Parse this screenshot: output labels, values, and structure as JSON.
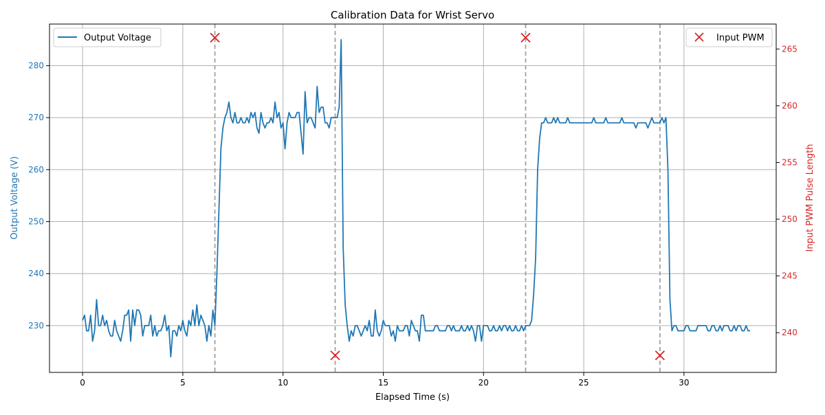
{
  "chart_data": {
    "type": "line",
    "title": "Calibration Data for Wrist Servo",
    "xlabel": "Elapsed Time (s)",
    "ylabel_left": "Output Voltage (V)",
    "ylabel_right": "Input PWM Pulse Length",
    "xlim": [
      -1.65,
      34.6
    ],
    "ylim_left": [
      221,
      288
    ],
    "ylim_right": [
      236.5,
      267.2
    ],
    "x_ticks": [
      0,
      5,
      10,
      15,
      20,
      25,
      30
    ],
    "y_ticks_left": [
      230,
      240,
      250,
      260,
      270,
      280
    ],
    "y_ticks_right": [
      240,
      245,
      250,
      255,
      260,
      265
    ],
    "grid": true,
    "colors": {
      "voltage": "#1f77b4",
      "pwm": "#d62728",
      "marker_lines": "#a0a0a0",
      "grid": "#b0b0b0"
    },
    "legend_left": {
      "label": "Output Voltage",
      "placement": "upper-left"
    },
    "legend_right": {
      "label": "Input PWM",
      "placement": "upper-right"
    },
    "series": [
      {
        "name": "Output Voltage",
        "axis": "left",
        "x_start": 0,
        "x_step": 0.1,
        "values": [
          231,
          232,
          229,
          229,
          232,
          227,
          229,
          235,
          230,
          230,
          232,
          230,
          231,
          229,
          228,
          228,
          231,
          229,
          228,
          227,
          229,
          232,
          232,
          233,
          227,
          233,
          230,
          233,
          233,
          232,
          228,
          230,
          230,
          230,
          232,
          228,
          230,
          228,
          229,
          229,
          230,
          232,
          229,
          230,
          224,
          229,
          229,
          228,
          230,
          229,
          231,
          229,
          228,
          231,
          230,
          233,
          230,
          234,
          230,
          232,
          231,
          230,
          227,
          230,
          228,
          233,
          230,
          240,
          252,
          264,
          268,
          270,
          271,
          273,
          270,
          269,
          271,
          269,
          269,
          270,
          269,
          269,
          270,
          269,
          271,
          270,
          271,
          268,
          267,
          271,
          269,
          268,
          269,
          269,
          270,
          269,
          273,
          270,
          271,
          268,
          269,
          264,
          269,
          271,
          270,
          270,
          270,
          271,
          271,
          267,
          263,
          275,
          269,
          270,
          270,
          269,
          268,
          276,
          271,
          272,
          272,
          269,
          269,
          268,
          270,
          270,
          270,
          270,
          272,
          285,
          245,
          234,
          230,
          227,
          229,
          228,
          230,
          230,
          229,
          228,
          229,
          230,
          229,
          231,
          228,
          228,
          233,
          229,
          228,
          229,
          231,
          230,
          230,
          230,
          228,
          229,
          227,
          230,
          229,
          229,
          229,
          230,
          230,
          228,
          231,
          230,
          229,
          229,
          227,
          232,
          232,
          229,
          229,
          229,
          229,
          229,
          230,
          230,
          229,
          229,
          229,
          229,
          230,
          230,
          229,
          230,
          229,
          229,
          229,
          230,
          229,
          229,
          230,
          229,
          230,
          229,
          227,
          230,
          230,
          227,
          230,
          230,
          230,
          229,
          229,
          230,
          229,
          229,
          230,
          229,
          230,
          230,
          229,
          230,
          229,
          229,
          230,
          229,
          229,
          230,
          229,
          230,
          230,
          230,
          231,
          236,
          243,
          260,
          266,
          269,
          269,
          270,
          269,
          269,
          269,
          270,
          269,
          270,
          269,
          269,
          269,
          269,
          270,
          269,
          269,
          269,
          269,
          269,
          269,
          269,
          269,
          269,
          269,
          269,
          269,
          270,
          269,
          269,
          269,
          269,
          269,
          270,
          269,
          269,
          269,
          269,
          269,
          269,
          269,
          270,
          269,
          269,
          269,
          269,
          269,
          269,
          268,
          269,
          269,
          269,
          269,
          269,
          268,
          269,
          270,
          269,
          269,
          269,
          269,
          270,
          269,
          270,
          260,
          235,
          229,
          230,
          230,
          229,
          229,
          229,
          229,
          230,
          230,
          229,
          229,
          229,
          229,
          230,
          230,
          230,
          230,
          230,
          229,
          229,
          230,
          230,
          229,
          229,
          230,
          229,
          230,
          230,
          230,
          229,
          229,
          230,
          229,
          230,
          230,
          229,
          229,
          230,
          229,
          229
        ]
      },
      {
        "name": "Input PWM",
        "axis": "right",
        "x": [
          6.6,
          12.6,
          22.1,
          28.8
        ],
        "y": [
          266,
          238,
          266,
          238
        ]
      }
    ],
    "vertical_lines_x": [
      6.6,
      12.6,
      22.1,
      28.8
    ]
  }
}
